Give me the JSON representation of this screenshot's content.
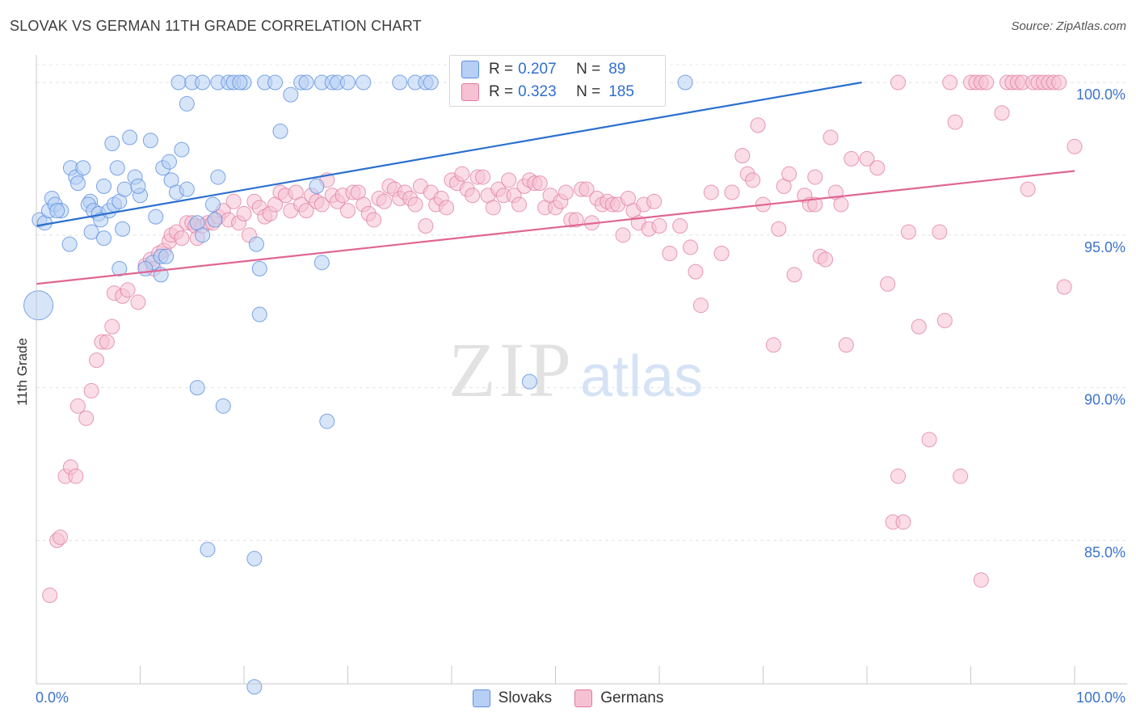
{
  "title": "SLOVAK VS GERMAN 11TH GRADE CORRELATION CHART",
  "source": "Source: ZipAtlas.com",
  "watermark": {
    "zip": "ZIP",
    "atlas": "atlas"
  },
  "legend": {
    "rows": [
      {
        "r_label": "R =",
        "r_value": "0.207",
        "n_label": "N =",
        "n_value": "89"
      },
      {
        "r_label": "R =",
        "r_value": "0.323",
        "n_label": "N =",
        "n_value": "185"
      }
    ]
  },
  "bottom_legend": [
    "Slovaks",
    "Germans"
  ],
  "colors": {
    "blue": "#5b8fe0",
    "blue_fill": "#b7cff4",
    "pink": "#e07aa0",
    "pink_fill": "#f6c1d3",
    "blue_line": "#2b6fcf",
    "pink_line": "#e06692",
    "tick_text": "#3c74cc"
  },
  "chart_data": {
    "type": "scatter",
    "title": "SLOVAK VS GERMAN 11TH GRADE CORRELATION CHART",
    "xlabel": "",
    "ylabel": "11th Grade",
    "xlim": [
      0,
      100
    ],
    "ylim": [
      80.3,
      100.9
    ],
    "x_ticks": [
      "0.0%",
      "100.0%"
    ],
    "y_ticks": [
      {
        "value": 85,
        "label": "85.0%"
      },
      {
        "value": 90,
        "label": "90.0%"
      },
      {
        "value": 95,
        "label": "95.0%"
      },
      {
        "value": 100,
        "label": "100.0%"
      }
    ],
    "grid": true,
    "series": [
      {
        "name": "Slovaks",
        "r": 0.207,
        "n": 89,
        "trend": {
          "x0": 0,
          "y0": 95.3,
          "x1": 79.5,
          "y1": 100.0
        },
        "points": [
          [
            0.3,
            95.5
          ],
          [
            0.8,
            95.4
          ],
          [
            1.2,
            95.8
          ],
          [
            1.5,
            96.2
          ],
          [
            1.8,
            96.0
          ],
          [
            2.4,
            95.8
          ],
          [
            2.0,
            95.8
          ],
          [
            3.3,
            97.2
          ],
          [
            3.8,
            96.9
          ],
          [
            4.5,
            97.2
          ],
          [
            4.0,
            96.7
          ],
          [
            5.2,
            96.1
          ],
          [
            5.0,
            96.0
          ],
          [
            5.5,
            95.8
          ],
          [
            6.0,
            95.7
          ],
          [
            6.2,
            95.5
          ],
          [
            6.5,
            96.6
          ],
          [
            7.0,
            95.8
          ],
          [
            7.5,
            96.0
          ],
          [
            3.2,
            94.7
          ],
          [
            5.3,
            95.1
          ],
          [
            8.0,
            96.1
          ],
          [
            8.5,
            96.5
          ],
          [
            7.3,
            98.0
          ],
          [
            7.8,
            97.2
          ],
          [
            9.0,
            98.2
          ],
          [
            9.5,
            96.9
          ],
          [
            10.0,
            96.3
          ],
          [
            9.8,
            96.6
          ],
          [
            11.0,
            98.1
          ],
          [
            11.5,
            95.6
          ],
          [
            8.3,
            95.2
          ],
          [
            6.5,
            94.9
          ],
          [
            8.0,
            93.9
          ],
          [
            11.2,
            94.1
          ],
          [
            12.0,
            94.3
          ],
          [
            12.5,
            94.3
          ],
          [
            12.2,
            97.2
          ],
          [
            12.8,
            97.4
          ],
          [
            13.0,
            96.8
          ],
          [
            13.5,
            96.4
          ],
          [
            14.0,
            97.8
          ],
          [
            14.5,
            96.5
          ],
          [
            13.7,
            100.0
          ],
          [
            14.5,
            99.3
          ],
          [
            15.0,
            100.0
          ],
          [
            16.0,
            100.0
          ],
          [
            17.5,
            100.0
          ],
          [
            18.5,
            100.0
          ],
          [
            19.0,
            100.0
          ],
          [
            20.0,
            100.0
          ],
          [
            19.6,
            100.0
          ],
          [
            22.0,
            100.0
          ],
          [
            23.0,
            100.0
          ],
          [
            24.5,
            99.6
          ],
          [
            25.5,
            100.0
          ],
          [
            26.0,
            100.0
          ],
          [
            27.5,
            100.0
          ],
          [
            28.5,
            100.0
          ],
          [
            29.0,
            100.0
          ],
          [
            30.0,
            100.0
          ],
          [
            31.5,
            100.0
          ],
          [
            35.0,
            100.0
          ],
          [
            36.5,
            100.0
          ],
          [
            37.5,
            100.0
          ],
          [
            38.0,
            100.0
          ],
          [
            48.8,
            100.0
          ],
          [
            62.5,
            100.0
          ],
          [
            23.5,
            98.4
          ],
          [
            15.5,
            95.4
          ],
          [
            16.0,
            95.0
          ],
          [
            17.0,
            96.0
          ],
          [
            17.5,
            96.9
          ],
          [
            17.2,
            95.5
          ],
          [
            21.2,
            94.7
          ],
          [
            21.5,
            93.9
          ],
          [
            27.0,
            96.6
          ],
          [
            27.5,
            94.1
          ],
          [
            21.5,
            92.4
          ],
          [
            15.5,
            90.0
          ],
          [
            18.0,
            89.4
          ],
          [
            28.0,
            88.9
          ],
          [
            47.5,
            90.2
          ],
          [
            16.5,
            84.7
          ],
          [
            21.0,
            84.4
          ],
          [
            0.2,
            92.7
          ],
          [
            21.0,
            80.2
          ],
          [
            10.5,
            93.9
          ],
          [
            12.0,
            93.7
          ]
        ]
      },
      {
        "name": "Germans",
        "r": 0.323,
        "n": 185,
        "trend": {
          "x0": 0,
          "y0": 93.4,
          "x1": 100,
          "y1": 97.1
        },
        "points": [
          [
            1.3,
            83.2
          ],
          [
            2.0,
            85.0
          ],
          [
            2.3,
            85.1
          ],
          [
            2.8,
            87.1
          ],
          [
            3.3,
            87.4
          ],
          [
            3.8,
            87.1
          ],
          [
            4.0,
            89.4
          ],
          [
            4.8,
            89.0
          ],
          [
            5.3,
            89.9
          ],
          [
            5.8,
            90.9
          ],
          [
            6.3,
            91.5
          ],
          [
            6.8,
            91.5
          ],
          [
            7.3,
            92.0
          ],
          [
            7.5,
            93.1
          ],
          [
            8.3,
            93.0
          ],
          [
            8.8,
            93.2
          ],
          [
            9.8,
            92.8
          ],
          [
            10.5,
            94.0
          ],
          [
            11.0,
            94.2
          ],
          [
            11.3,
            93.9
          ],
          [
            11.8,
            94.4
          ],
          [
            12.3,
            94.5
          ],
          [
            12.8,
            94.8
          ],
          [
            13.0,
            95.0
          ],
          [
            13.5,
            95.1
          ],
          [
            14.0,
            94.9
          ],
          [
            14.5,
            95.4
          ],
          [
            15.0,
            95.4
          ],
          [
            15.3,
            95.3
          ],
          [
            15.5,
            94.9
          ],
          [
            16.0,
            95.3
          ],
          [
            16.5,
            95.4
          ],
          [
            17.0,
            95.4
          ],
          [
            17.5,
            95.6
          ],
          [
            18.0,
            95.8
          ],
          [
            18.5,
            95.5
          ],
          [
            19.0,
            96.1
          ],
          [
            19.5,
            95.4
          ],
          [
            20.0,
            95.7
          ],
          [
            20.5,
            95.0
          ],
          [
            21.0,
            96.1
          ],
          [
            21.5,
            95.9
          ],
          [
            22.0,
            95.6
          ],
          [
            22.5,
            95.7
          ],
          [
            23.0,
            96.0
          ],
          [
            23.5,
            96.4
          ],
          [
            24.0,
            96.3
          ],
          [
            24.5,
            95.8
          ],
          [
            25.0,
            96.4
          ],
          [
            25.5,
            96.0
          ],
          [
            26.0,
            95.8
          ],
          [
            26.5,
            96.3
          ],
          [
            27.0,
            96.1
          ],
          [
            27.5,
            96.0
          ],
          [
            28.0,
            96.8
          ],
          [
            28.5,
            96.3
          ],
          [
            29.0,
            96.1
          ],
          [
            29.5,
            96.3
          ],
          [
            30.0,
            95.8
          ],
          [
            30.5,
            96.4
          ],
          [
            31.0,
            96.4
          ],
          [
            31.5,
            96.0
          ],
          [
            32.0,
            95.7
          ],
          [
            32.5,
            95.5
          ],
          [
            33.0,
            96.2
          ],
          [
            33.5,
            96.1
          ],
          [
            34.0,
            96.6
          ],
          [
            34.5,
            96.5
          ],
          [
            35.0,
            96.2
          ],
          [
            35.5,
            96.4
          ],
          [
            36.0,
            96.2
          ],
          [
            36.5,
            96.0
          ],
          [
            37.0,
            96.6
          ],
          [
            37.5,
            95.3
          ],
          [
            38.0,
            96.4
          ],
          [
            38.5,
            96.0
          ],
          [
            39.0,
            96.2
          ],
          [
            39.5,
            95.9
          ],
          [
            40.0,
            96.8
          ],
          [
            40.5,
            96.7
          ],
          [
            41.0,
            97.0
          ],
          [
            41.5,
            96.5
          ],
          [
            42.0,
            96.3
          ],
          [
            42.5,
            96.9
          ],
          [
            43.0,
            96.9
          ],
          [
            43.5,
            96.3
          ],
          [
            44.0,
            95.9
          ],
          [
            44.5,
            96.5
          ],
          [
            45.0,
            96.3
          ],
          [
            45.5,
            96.8
          ],
          [
            46.0,
            96.3
          ],
          [
            46.5,
            96.0
          ],
          [
            47.0,
            96.6
          ],
          [
            47.5,
            96.8
          ],
          [
            48.0,
            96.7
          ],
          [
            48.5,
            96.7
          ],
          [
            49.0,
            95.9
          ],
          [
            49.5,
            96.3
          ],
          [
            50.0,
            95.9
          ],
          [
            50.5,
            96.1
          ],
          [
            51.0,
            96.4
          ],
          [
            51.5,
            95.5
          ],
          [
            52.0,
            95.5
          ],
          [
            52.5,
            96.5
          ],
          [
            53.0,
            96.5
          ],
          [
            53.5,
            95.4
          ],
          [
            54.0,
            96.2
          ],
          [
            54.5,
            96.0
          ],
          [
            55.0,
            96.1
          ],
          [
            55.5,
            96.0
          ],
          [
            56.0,
            96.0
          ],
          [
            56.5,
            95.0
          ],
          [
            57.0,
            96.2
          ],
          [
            57.5,
            95.8
          ],
          [
            58.0,
            95.4
          ],
          [
            58.5,
            96.0
          ],
          [
            59.0,
            95.2
          ],
          [
            59.5,
            96.1
          ],
          [
            60.0,
            95.3
          ],
          [
            61.0,
            94.4
          ],
          [
            62.0,
            95.3
          ],
          [
            63.0,
            94.6
          ],
          [
            63.5,
            93.8
          ],
          [
            64.0,
            92.7
          ],
          [
            65.0,
            96.4
          ],
          [
            66.0,
            94.4
          ],
          [
            67.0,
            96.4
          ],
          [
            68.0,
            97.6
          ],
          [
            68.5,
            97.0
          ],
          [
            69.0,
            96.8
          ],
          [
            69.5,
            98.6
          ],
          [
            70.0,
            96.0
          ],
          [
            71.0,
            91.4
          ],
          [
            72.0,
            96.6
          ],
          [
            72.5,
            97.0
          ],
          [
            73.0,
            93.7
          ],
          [
            74.0,
            96.3
          ],
          [
            74.5,
            96.0
          ],
          [
            75.0,
            96.9
          ],
          [
            75.5,
            94.3
          ],
          [
            76.0,
            94.2
          ],
          [
            76.5,
            98.2
          ],
          [
            77.0,
            96.4
          ],
          [
            77.5,
            96.0
          ],
          [
            78.0,
            91.4
          ],
          [
            78.5,
            97.5
          ],
          [
            80.0,
            97.5
          ],
          [
            81.0,
            97.2
          ],
          [
            82.0,
            93.4
          ],
          [
            82.5,
            85.6
          ],
          [
            83.0,
            87.1
          ],
          [
            83.5,
            85.6
          ],
          [
            84.0,
            95.1
          ],
          [
            85.0,
            92.0
          ],
          [
            86.0,
            88.3
          ],
          [
            87.0,
            95.1
          ],
          [
            87.5,
            92.2
          ],
          [
            88.0,
            100.0
          ],
          [
            88.5,
            98.7
          ],
          [
            89.0,
            87.1
          ],
          [
            90.0,
            100.0
          ],
          [
            90.5,
            100.0
          ],
          [
            91.0,
            100.0
          ],
          [
            91.5,
            100.0
          ],
          [
            93.0,
            99.0
          ],
          [
            93.5,
            100.0
          ],
          [
            94.0,
            100.0
          ],
          [
            94.5,
            100.0
          ],
          [
            95.0,
            100.0
          ],
          [
            96.0,
            100.0
          ],
          [
            96.5,
            100.0
          ],
          [
            97.0,
            100.0
          ],
          [
            97.5,
            100.0
          ],
          [
            98.0,
            100.0
          ],
          [
            98.5,
            100.0
          ],
          [
            99.0,
            93.3
          ],
          [
            100.0,
            97.9
          ],
          [
            95.5,
            96.5
          ],
          [
            91.0,
            83.7
          ],
          [
            71.5,
            95.2
          ],
          [
            83.0,
            100.0
          ],
          [
            75.0,
            96.0
          ]
        ]
      }
    ]
  }
}
